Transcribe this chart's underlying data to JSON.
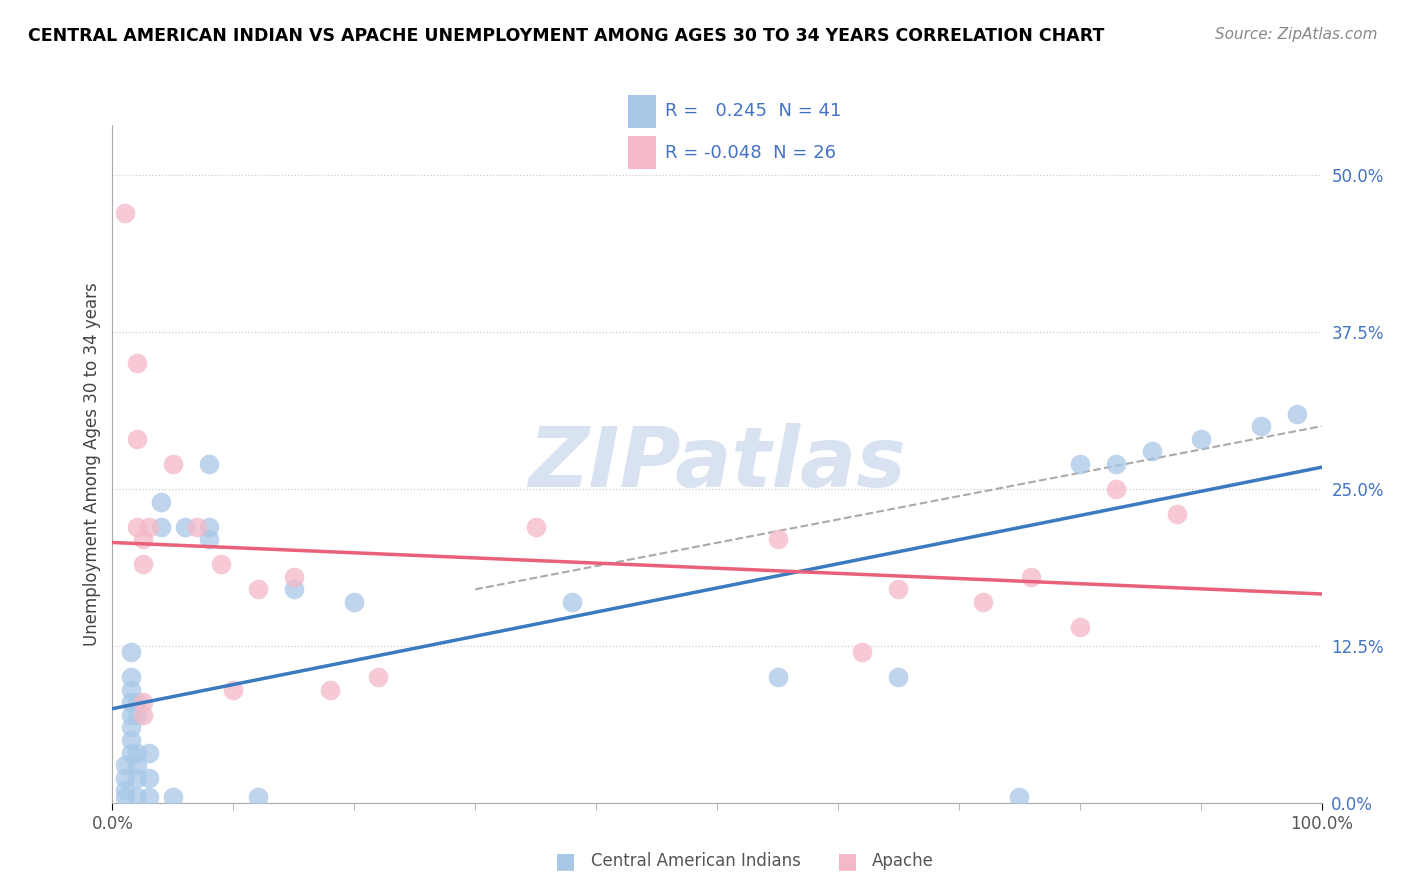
{
  "title": "CENTRAL AMERICAN INDIAN VS APACHE UNEMPLOYMENT AMONG AGES 30 TO 34 YEARS CORRELATION CHART",
  "source": "Source: ZipAtlas.com",
  "ylabel": "Unemployment Among Ages 30 to 34 years",
  "xlim": [
    0.0,
    1.0
  ],
  "ylim": [
    0.0,
    0.54
  ],
  "ytick_vals": [
    0.0,
    0.125,
    0.25,
    0.375,
    0.5
  ],
  "ytick_labels": [
    "0.0%",
    "12.5%",
    "25.0%",
    "37.5%",
    "50.0%"
  ],
  "xtick_vals": [
    0.0,
    1.0
  ],
  "xtick_labels": [
    "0.0%",
    "100.0%"
  ],
  "legend_R_blue": " 0.245",
  "legend_N_blue": "41",
  "legend_R_pink": "-0.048",
  "legend_N_pink": "26",
  "blue_color": "#a8c8e8",
  "pink_color": "#f4b8c8",
  "blue_line_color": "#3a7abf",
  "pink_line_color": "#e8607a",
  "dash_line_color": "#aaaaaa",
  "watermark_color": "#d4dff0",
  "blue_scatter": [
    [
      0.01,
      0.005
    ],
    [
      0.01,
      0.01
    ],
    [
      0.01,
      0.02
    ],
    [
      0.01,
      0.03
    ],
    [
      0.015,
      0.04
    ],
    [
      0.015,
      0.05
    ],
    [
      0.015,
      0.06
    ],
    [
      0.015,
      0.07
    ],
    [
      0.015,
      0.08
    ],
    [
      0.015,
      0.09
    ],
    [
      0.015,
      0.1
    ],
    [
      0.015,
      0.12
    ],
    [
      0.02,
      0.005
    ],
    [
      0.02,
      0.02
    ],
    [
      0.02,
      0.03
    ],
    [
      0.02,
      0.04
    ],
    [
      0.02,
      0.07
    ],
    [
      0.02,
      0.08
    ],
    [
      0.03,
      0.005
    ],
    [
      0.03,
      0.02
    ],
    [
      0.03,
      0.04
    ],
    [
      0.04,
      0.24
    ],
    [
      0.04,
      0.22
    ],
    [
      0.05,
      0.005
    ],
    [
      0.06,
      0.22
    ],
    [
      0.08,
      0.27
    ],
    [
      0.08,
      0.21
    ],
    [
      0.08,
      0.22
    ],
    [
      0.12,
      0.005
    ],
    [
      0.15,
      0.17
    ],
    [
      0.2,
      0.16
    ],
    [
      0.38,
      0.16
    ],
    [
      0.55,
      0.1
    ],
    [
      0.65,
      0.1
    ],
    [
      0.75,
      0.005
    ],
    [
      0.8,
      0.27
    ],
    [
      0.83,
      0.27
    ],
    [
      0.86,
      0.28
    ],
    [
      0.9,
      0.29
    ],
    [
      0.95,
      0.3
    ],
    [
      0.98,
      0.31
    ]
  ],
  "pink_scatter": [
    [
      0.01,
      0.47
    ],
    [
      0.02,
      0.35
    ],
    [
      0.02,
      0.29
    ],
    [
      0.02,
      0.22
    ],
    [
      0.025,
      0.21
    ],
    [
      0.025,
      0.19
    ],
    [
      0.025,
      0.08
    ],
    [
      0.025,
      0.07
    ],
    [
      0.03,
      0.22
    ],
    [
      0.05,
      0.27
    ],
    [
      0.07,
      0.22
    ],
    [
      0.09,
      0.19
    ],
    [
      0.1,
      0.09
    ],
    [
      0.12,
      0.17
    ],
    [
      0.15,
      0.18
    ],
    [
      0.18,
      0.09
    ],
    [
      0.22,
      0.1
    ],
    [
      0.35,
      0.22
    ],
    [
      0.55,
      0.21
    ],
    [
      0.62,
      0.12
    ],
    [
      0.65,
      0.17
    ],
    [
      0.72,
      0.16
    ],
    [
      0.76,
      0.18
    ],
    [
      0.8,
      0.14
    ],
    [
      0.83,
      0.25
    ],
    [
      0.88,
      0.23
    ]
  ],
  "blue_trendline": [
    0.0,
    1.0,
    0.07,
    0.22
  ],
  "pink_trendline": [
    0.0,
    1.0,
    0.2,
    0.18
  ],
  "dash_trendline": [
    0.3,
    1.0,
    0.17,
    0.3
  ]
}
